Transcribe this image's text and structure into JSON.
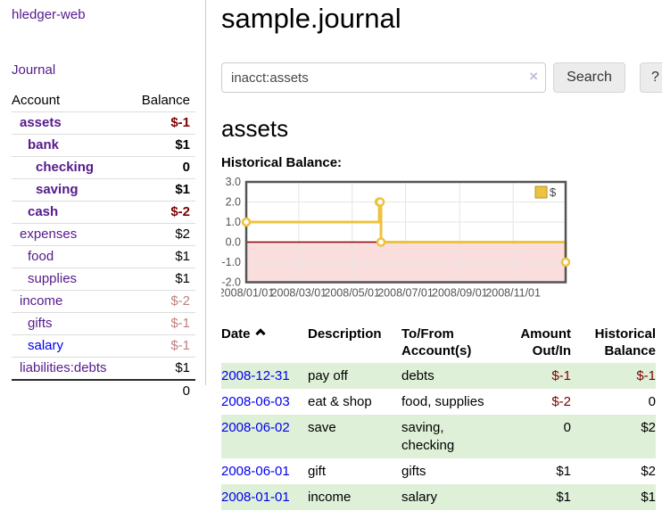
{
  "app": {
    "title": "hledger-web"
  },
  "colors": {
    "link_purple": "#551a8b",
    "link_blue": "#0000ee",
    "negative_strong": "#7f0000",
    "negative_dim": "#c08080",
    "row_highlight_green": "#dff0d8",
    "chart_line_gold": "#edc240"
  },
  "sidebar": {
    "journal_link": "Journal",
    "accounts": {
      "account_header": "Account",
      "balance_header": "Balance",
      "rows": [
        {
          "name": "assets",
          "balance": "$-1",
          "level": 0,
          "bold": true,
          "link": "purple",
          "balance_style": "neg-strong"
        },
        {
          "name": "bank",
          "balance": "$1",
          "level": 1,
          "bold": true,
          "link": "purple",
          "balance_style": "normal"
        },
        {
          "name": "checking",
          "balance": "0",
          "level": 2,
          "bold": true,
          "link": "purple",
          "balance_style": "normal"
        },
        {
          "name": "saving",
          "balance": "$1",
          "level": 2,
          "bold": true,
          "link": "purple",
          "balance_style": "normal"
        },
        {
          "name": "cash",
          "balance": "$-2",
          "level": 1,
          "bold": true,
          "link": "purple",
          "balance_style": "neg-strong"
        },
        {
          "name": "expenses",
          "balance": "$2",
          "level": 0,
          "bold": false,
          "link": "purple",
          "balance_style": "normal"
        },
        {
          "name": "food",
          "balance": "$1",
          "level": 1,
          "bold": false,
          "link": "purple",
          "balance_style": "normal"
        },
        {
          "name": "supplies",
          "balance": "$1",
          "level": 1,
          "bold": false,
          "link": "purple",
          "balance_style": "normal"
        },
        {
          "name": "income",
          "balance": "$-2",
          "level": 0,
          "bold": false,
          "link": "purple",
          "balance_style": "neg-dim"
        },
        {
          "name": "gifts",
          "balance": "$-1",
          "level": 1,
          "bold": false,
          "link": "purple",
          "balance_style": "neg-dim"
        },
        {
          "name": "salary",
          "balance": "$-1",
          "level": 1,
          "bold": false,
          "link": "blue",
          "balance_style": "neg-dim"
        },
        {
          "name": "liabilities:debts",
          "balance": "$1",
          "level": 0,
          "bold": false,
          "link": "purple",
          "balance_style": "normal"
        }
      ],
      "total": "0"
    }
  },
  "main": {
    "title": "sample.journal",
    "search": {
      "value": "inacct:assets",
      "clear_label": "×",
      "button_label": "Search",
      "help_label": "?"
    },
    "account_heading": "assets",
    "chart_heading": "Historical Balance:"
  },
  "chart_data": {
    "type": "line",
    "title": "Historical Balance",
    "xrange": [
      "2008-01-01",
      "2008-12-31"
    ],
    "ylim": [
      -2,
      3
    ],
    "yticks": [
      {
        "value": 3,
        "label": "3.0"
      },
      {
        "value": 2,
        "label": "2.0"
      },
      {
        "value": 1,
        "label": "1.0"
      },
      {
        "value": 0,
        "label": "0.0"
      },
      {
        "value": -1,
        "label": "-1.0"
      },
      {
        "value": -2,
        "label": "-2.0"
      }
    ],
    "xticks": [
      {
        "date": "2008-01-01",
        "label": "2008/01/01"
      },
      {
        "date": "2008-03-01",
        "label": "2008/03/01"
      },
      {
        "date": "2008-05-01",
        "label": "2008/05/01"
      },
      {
        "date": "2008-07-01",
        "label": "2008/07/01"
      },
      {
        "date": "2008-09-01",
        "label": "2008/09/01"
      },
      {
        "date": "2008-11-01",
        "label": "2008/11/01"
      }
    ],
    "series": [
      {
        "name": "$",
        "color": "#edc240",
        "step": true,
        "points": [
          {
            "date": "2008-01-01",
            "value": 1
          },
          {
            "date": "2008-06-01",
            "value": 2
          },
          {
            "date": "2008-06-02",
            "value": 2
          },
          {
            "date": "2008-06-03",
            "value": 0
          },
          {
            "date": "2008-12-31",
            "value": -1
          }
        ]
      }
    ],
    "grid": true,
    "legend_position": "top-right",
    "negative_region_color": "#fadddd",
    "zero_line_color": "#8b0000",
    "border_color": "#545454",
    "grid_color": "#e6e6e6",
    "tick_label_color": "#545454"
  },
  "register": {
    "headers": {
      "date": "Date",
      "sort_icon": "chevron-up",
      "description": "Description",
      "accounts": "To/From Account(s)",
      "amount": "Amount Out/In",
      "balance": "Historical Balance"
    },
    "rows": [
      {
        "date": "2008-12-31",
        "description": "pay off",
        "accounts": "debts",
        "amount": "$-1",
        "amount_negative": true,
        "balance": "$-1",
        "balance_negative": true,
        "highlighted": true
      },
      {
        "date": "2008-06-03",
        "description": "eat & shop",
        "accounts": "food, supplies",
        "amount": "$-2",
        "amount_negative": true,
        "balance": "0",
        "balance_negative": false,
        "highlighted": false
      },
      {
        "date": "2008-06-02",
        "description": "save",
        "accounts": "saving, checking",
        "amount": "0",
        "amount_negative": false,
        "balance": "$2",
        "balance_negative": false,
        "highlighted": true
      },
      {
        "date": "2008-06-01",
        "description": "gift",
        "accounts": "gifts",
        "amount": "$1",
        "amount_negative": false,
        "balance": "$2",
        "balance_negative": false,
        "highlighted": false
      },
      {
        "date": "2008-01-01",
        "description": "income",
        "accounts": "salary",
        "amount": "$1",
        "amount_negative": false,
        "balance": "$1",
        "balance_negative": false,
        "highlighted": true
      }
    ]
  }
}
